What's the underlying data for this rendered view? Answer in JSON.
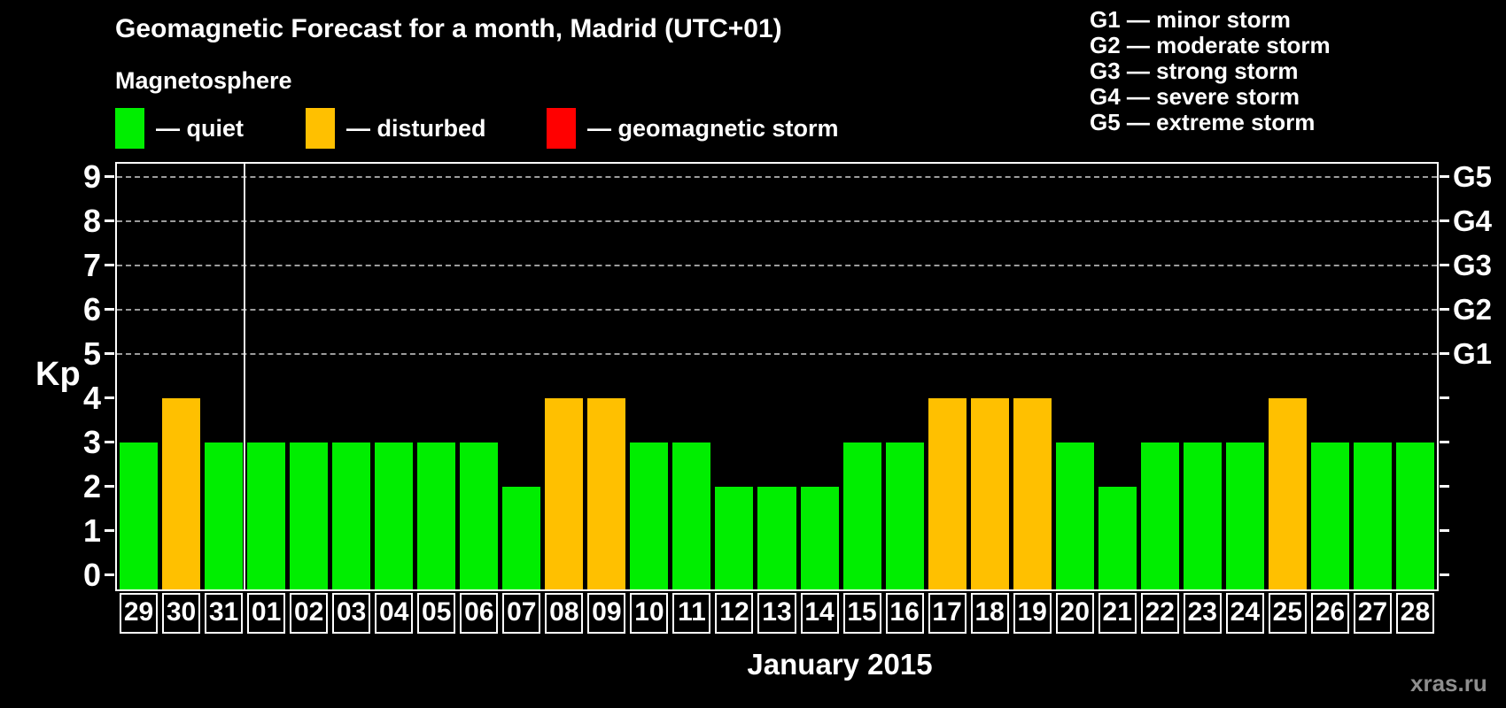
{
  "header": {
    "title": "Geomagnetic Forecast for a month, Madrid (UTC+01)",
    "subtitle": "Magnetosphere"
  },
  "legend": {
    "items": [
      {
        "name": "quiet",
        "label": "— quiet",
        "color": "#00ee00"
      },
      {
        "name": "disturbed",
        "label": "— disturbed",
        "color": "#ffc000"
      },
      {
        "name": "storm",
        "label": "— geomagnetic storm",
        "color": "#ff0000"
      }
    ]
  },
  "g_scale_legend": {
    "items": [
      "G1 — minor storm",
      "G2 — moderate storm",
      "G3 — strong storm",
      "G4 — severe storm",
      "G5 — extreme storm"
    ]
  },
  "footer": {
    "month_label": "January 2015",
    "watermark": "xras.ru"
  },
  "chart_data": {
    "type": "bar",
    "title": "Geomagnetic Forecast for a month, Madrid (UTC+01)",
    "xlabel": "January 2015",
    "ylabel": "Kp",
    "ylim": [
      0,
      9
    ],
    "y_axis": {
      "label": "Kp",
      "ticks": [
        0,
        1,
        2,
        3,
        4,
        5,
        6,
        7,
        8,
        9
      ]
    },
    "right_axis": {
      "labels": [
        {
          "kp": 5,
          "label": "G1"
        },
        {
          "kp": 6,
          "label": "G2"
        },
        {
          "kp": 7,
          "label": "G3"
        },
        {
          "kp": 8,
          "label": "G4"
        },
        {
          "kp": 9,
          "label": "G5"
        }
      ]
    },
    "gridlines_at": [
      5,
      6,
      7,
      8,
      9
    ],
    "grid": "dashed horizontal at G-storm levels only",
    "status_colors": {
      "quiet": "#00ee00",
      "disturbed": "#ffc000",
      "storm": "#ff0000"
    },
    "month_separator_after_index": 3,
    "points": [
      {
        "day": "29",
        "kp": 3,
        "status": "quiet"
      },
      {
        "day": "30",
        "kp": 4,
        "status": "disturbed"
      },
      {
        "day": "31",
        "kp": 3,
        "status": "quiet"
      },
      {
        "day": "01",
        "kp": 3,
        "status": "quiet"
      },
      {
        "day": "02",
        "kp": 3,
        "status": "quiet"
      },
      {
        "day": "03",
        "kp": 3,
        "status": "quiet"
      },
      {
        "day": "04",
        "kp": 3,
        "status": "quiet"
      },
      {
        "day": "05",
        "kp": 3,
        "status": "quiet"
      },
      {
        "day": "06",
        "kp": 3,
        "status": "quiet"
      },
      {
        "day": "07",
        "kp": 2,
        "status": "quiet"
      },
      {
        "day": "08",
        "kp": 4,
        "status": "disturbed"
      },
      {
        "day": "09",
        "kp": 4,
        "status": "disturbed"
      },
      {
        "day": "10",
        "kp": 3,
        "status": "quiet"
      },
      {
        "day": "11",
        "kp": 3,
        "status": "quiet"
      },
      {
        "day": "12",
        "kp": 2,
        "status": "quiet"
      },
      {
        "day": "13",
        "kp": 2,
        "status": "quiet"
      },
      {
        "day": "14",
        "kp": 2,
        "status": "quiet"
      },
      {
        "day": "15",
        "kp": 3,
        "status": "quiet"
      },
      {
        "day": "16",
        "kp": 3,
        "status": "quiet"
      },
      {
        "day": "17",
        "kp": 4,
        "status": "disturbed"
      },
      {
        "day": "18",
        "kp": 4,
        "status": "disturbed"
      },
      {
        "day": "19",
        "kp": 4,
        "status": "disturbed"
      },
      {
        "day": "20",
        "kp": 3,
        "status": "quiet"
      },
      {
        "day": "21",
        "kp": 2,
        "status": "quiet"
      },
      {
        "day": "22",
        "kp": 3,
        "status": "quiet"
      },
      {
        "day": "23",
        "kp": 3,
        "status": "quiet"
      },
      {
        "day": "24",
        "kp": 3,
        "status": "quiet"
      },
      {
        "day": "25",
        "kp": 4,
        "status": "disturbed"
      },
      {
        "day": "26",
        "kp": 3,
        "status": "quiet"
      },
      {
        "day": "27",
        "kp": 3,
        "status": "quiet"
      },
      {
        "day": "28",
        "kp": 3,
        "status": "quiet"
      }
    ]
  }
}
